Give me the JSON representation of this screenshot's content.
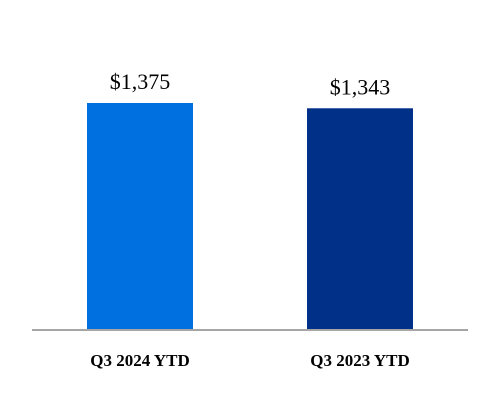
{
  "chart_data": {
    "type": "bar",
    "categories": [
      "Q3 2024 YTD",
      "Q3 2023 YTD"
    ],
    "values": [
      1375,
      1343
    ],
    "value_labels": [
      "$1,375",
      "$1,343"
    ],
    "bar_colors": [
      "#0070E0",
      "#003087"
    ],
    "ylim": [
      0,
      1375
    ],
    "grid": false,
    "legend": "none",
    "title": "",
    "xlabel": "",
    "ylabel": ""
  }
}
